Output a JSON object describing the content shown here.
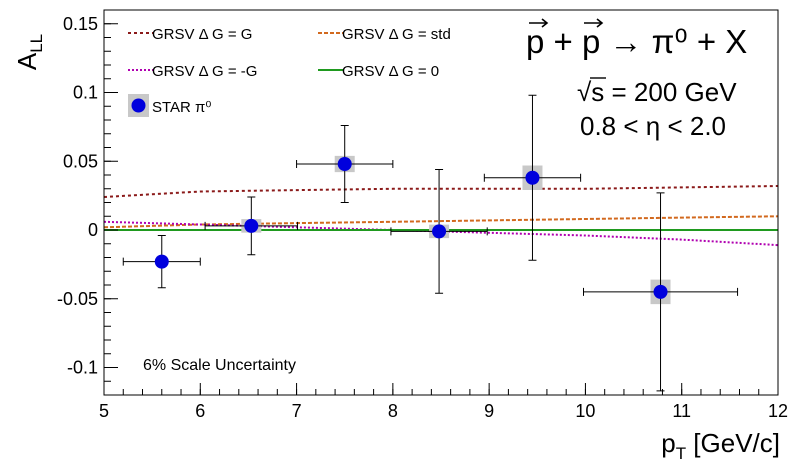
{
  "chart_data": {
    "type": "scatter",
    "ylabel": "A",
    "ylabel_sub": "LL",
    "xlabel": "p",
    "xlabel_sub": "T",
    "xlabel_unit": " [GeV/c]",
    "xlim": [
      5,
      12
    ],
    "ylim": [
      -0.12,
      0.16
    ],
    "x_ticks": [
      "5",
      "6",
      "7",
      "8",
      "9",
      "10",
      "11",
      "12"
    ],
    "y_ticks": [
      "-0.1",
      "-0.05",
      "0",
      "0.05",
      "0.1",
      "0.15"
    ],
    "legend_placement": "top-left",
    "grid": false,
    "series": [
      {
        "name": "STAR π⁰",
        "kind": "points",
        "color": "#0000dd",
        "points": [
          {
            "x": 5.6,
            "y": -0.023,
            "xerr": 0.4,
            "yerr": 0.019,
            "syst": 0.0
          },
          {
            "x": 6.53,
            "y": 0.003,
            "xerr": 0.48,
            "yerr": 0.021,
            "syst": 0.002
          },
          {
            "x": 7.5,
            "y": 0.048,
            "xerr": 0.5,
            "yerr": 0.028,
            "syst": 0.003
          },
          {
            "x": 8.48,
            "y": -0.001,
            "xerr": 0.5,
            "yerr": 0.045,
            "syst": 0.002
          },
          {
            "x": 9.45,
            "y": 0.038,
            "xerr": 0.5,
            "yerr": 0.06,
            "syst": 0.006
          },
          {
            "x": 10.78,
            "y": -0.045,
            "xerr": 0.8,
            "yerr": 0.072,
            "syst": 0.006
          }
        ]
      },
      {
        "name": "GRSV Δ G = G",
        "kind": "line",
        "color": "#8b1a1a",
        "dash": "3,3",
        "x": [
          5,
          6,
          7,
          8,
          9,
          10,
          11,
          12
        ],
        "y": [
          0.024,
          0.028,
          0.029,
          0.03,
          0.03,
          0.03,
          0.031,
          0.032
        ]
      },
      {
        "name": "GRSV Δ G = std",
        "kind": "line",
        "color": "#d2691e",
        "dash": "4,2",
        "x": [
          5,
          6,
          7,
          8,
          9,
          10,
          11,
          12
        ],
        "y": [
          0.002,
          0.004,
          0.005,
          0.006,
          0.007,
          0.008,
          0.009,
          0.01
        ]
      },
      {
        "name": "GRSV Δ G = -G",
        "kind": "line",
        "color": "#b000b0",
        "dash": "2,2",
        "x": [
          5,
          6,
          7,
          8,
          9,
          10,
          11,
          12
        ],
        "y": [
          0.006,
          0.004,
          0.002,
          0.0,
          -0.002,
          -0.004,
          -0.007,
          -0.011
        ]
      },
      {
        "name": "GRSV Δ G = 0",
        "kind": "line",
        "color": "#1f9a1f",
        "dash": "",
        "x": [
          5,
          12
        ],
        "y": [
          0.0,
          0.0
        ]
      }
    ],
    "annotations": {
      "reaction": "p + p → π⁰ + X",
      "energy_prefix": "√",
      "energy_text": "s = 200 GeV",
      "eta_range": "0.8 < η < 2.0",
      "scale_uncertainty": "6% Scale Uncertainty"
    }
  }
}
